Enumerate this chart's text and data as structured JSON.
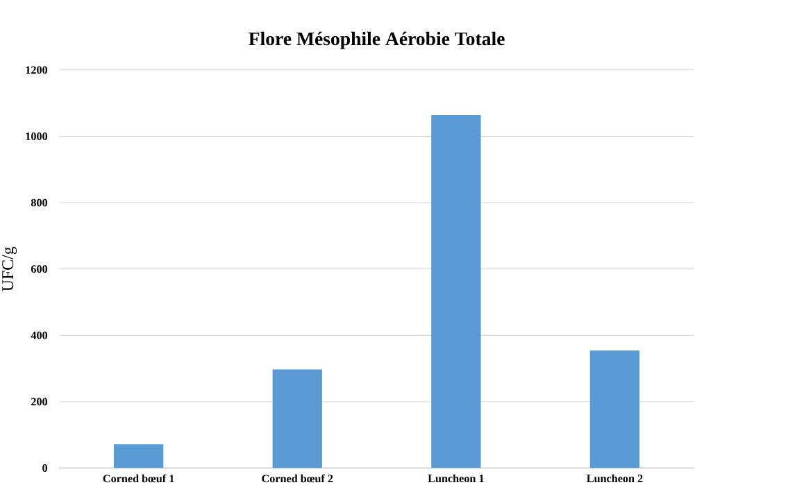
{
  "chart_data": {
    "type": "bar",
    "title": "Flore Mésophile Aérobie Totale",
    "ylabel": "UFC/g",
    "categories": [
      "Corned bœuf 1",
      "Corned bœuf 2",
      "Luncheon 1",
      "Luncheon 2"
    ],
    "values": [
      72,
      297,
      1064,
      354
    ],
    "color": "#5b9bd5",
    "ylim": [
      0,
      1200
    ],
    "yticks": [
      0,
      200,
      400,
      600,
      800,
      1000,
      1200
    ],
    "grid": "y"
  }
}
